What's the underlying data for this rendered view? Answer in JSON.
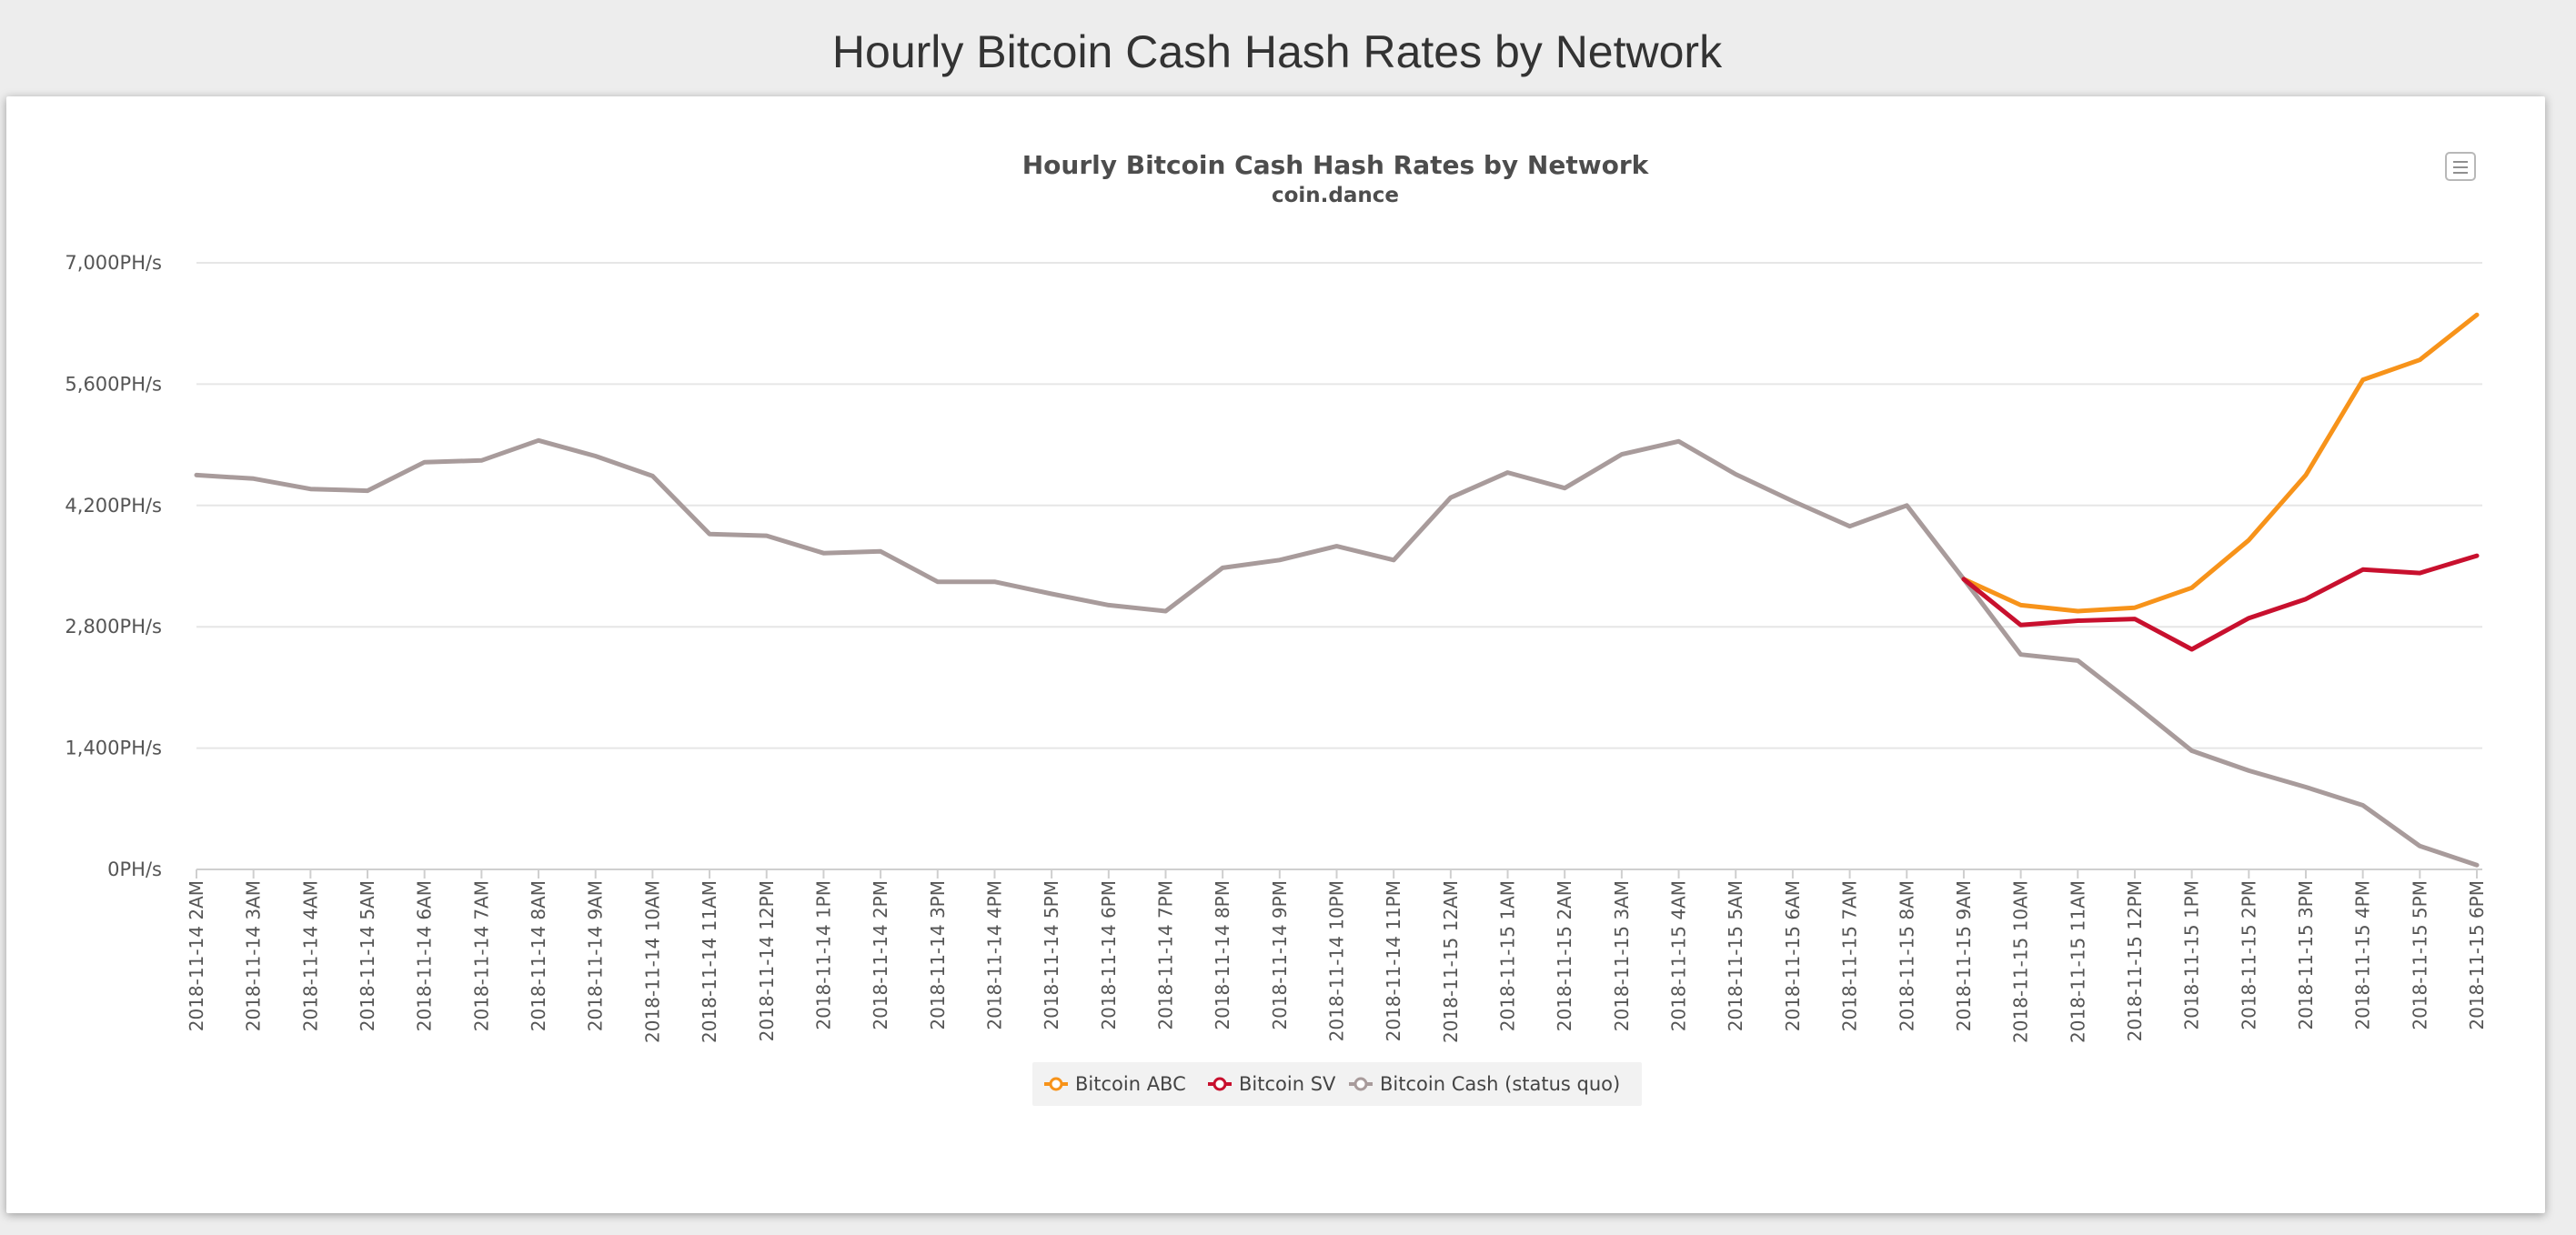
{
  "page": {
    "heading": "Hourly Bitcoin Cash Hash Rates by Network"
  },
  "menu_icon": "hamburger-menu-icon",
  "chart_data": {
    "type": "line",
    "title": "Hourly Bitcoin Cash Hash Rates by Network",
    "subtitle": "coin.dance",
    "xlabel": "",
    "ylabel": "",
    "ylim": [
      0,
      7000
    ],
    "yticks": [
      0,
      1400,
      2800,
      4200,
      5600,
      7000
    ],
    "ytick_labels": [
      "0PH/s",
      "1,400PH/s",
      "2,800PH/s",
      "4,200PH/s",
      "5,600PH/s",
      "7,000PH/s"
    ],
    "grid": true,
    "legend_position": "bottom-center",
    "categories": [
      "2018-11-14 2AM",
      "2018-11-14 3AM",
      "2018-11-14 4AM",
      "2018-11-14 5AM",
      "2018-11-14 6AM",
      "2018-11-14 7AM",
      "2018-11-14 8AM",
      "2018-11-14 9AM",
      "2018-11-14 10AM",
      "2018-11-14 11AM",
      "2018-11-14 12PM",
      "2018-11-14 1PM",
      "2018-11-14 2PM",
      "2018-11-14 3PM",
      "2018-11-14 4PM",
      "2018-11-14 5PM",
      "2018-11-14 6PM",
      "2018-11-14 7PM",
      "2018-11-14 8PM",
      "2018-11-14 9PM",
      "2018-11-14 10PM",
      "2018-11-14 11PM",
      "2018-11-15 12AM",
      "2018-11-15 1AM",
      "2018-11-15 2AM",
      "2018-11-15 3AM",
      "2018-11-15 4AM",
      "2018-11-15 5AM",
      "2018-11-15 6AM",
      "2018-11-15 7AM",
      "2018-11-15 8AM",
      "2018-11-15 9AM",
      "2018-11-15 10AM",
      "2018-11-15 11AM",
      "2018-11-15 12PM",
      "2018-11-15 1PM",
      "2018-11-15 2PM",
      "2018-11-15 3PM",
      "2018-11-15 4PM",
      "2018-11-15 5PM",
      "2018-11-15 6PM"
    ],
    "series": [
      {
        "name": "Bitcoin ABC",
        "color": "#f7931a",
        "values": [
          null,
          null,
          null,
          null,
          null,
          null,
          null,
          null,
          null,
          null,
          null,
          null,
          null,
          null,
          null,
          null,
          null,
          null,
          null,
          null,
          null,
          null,
          null,
          null,
          null,
          null,
          null,
          null,
          null,
          null,
          null,
          3350,
          3050,
          2980,
          3020,
          3250,
          3800,
          4550,
          5650,
          5880,
          6400
        ]
      },
      {
        "name": "Bitcoin SV",
        "color": "#c8102e",
        "values": [
          null,
          null,
          null,
          null,
          null,
          null,
          null,
          null,
          null,
          null,
          null,
          null,
          null,
          null,
          null,
          null,
          null,
          null,
          null,
          null,
          null,
          null,
          null,
          null,
          null,
          null,
          null,
          null,
          null,
          null,
          null,
          3350,
          2820,
          2870,
          2890,
          2540,
          2900,
          3120,
          3460,
          3420,
          3620
        ]
      },
      {
        "name": "Bitcoin Cash (status quo)",
        "color": "#a89b9b",
        "values": [
          4550,
          4510,
          4390,
          4370,
          4700,
          4720,
          4950,
          4770,
          4540,
          3870,
          3850,
          3650,
          3670,
          3320,
          3320,
          3180,
          3050,
          2980,
          3480,
          3570,
          3730,
          3570,
          4290,
          4580,
          4400,
          4790,
          4940,
          4560,
          4250,
          3960,
          4200,
          3350,
          2480,
          2410,
          1900,
          1370,
          1140,
          950,
          740,
          270,
          50
        ]
      }
    ]
  }
}
